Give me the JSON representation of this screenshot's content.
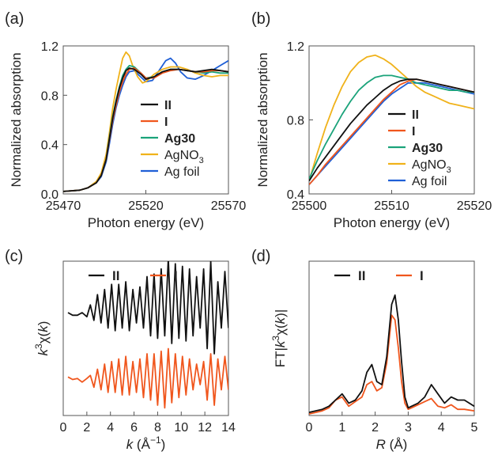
{
  "colors": {
    "II": "#111111",
    "I": "#f0561d",
    "Ag30": "#1aa37a",
    "AgNO3": "#f0b21a",
    "Agfoil": "#1f5fd6",
    "frame": "#555555"
  },
  "chart_data": [
    {
      "id": "a",
      "panel_label": "(a)",
      "type": "line",
      "xlabel": "Photon energy (eV)",
      "ylabel": "Normalized absorption",
      "xlim": [
        25470,
        25570
      ],
      "ylim": [
        0,
        1.2
      ],
      "xticks": [
        25470,
        25520,
        25570
      ],
      "xtick_labels": [
        "25470",
        "25520",
        "25570"
      ],
      "yticks": [
        0,
        0.4,
        0.8,
        1.2
      ],
      "ytick_labels": [
        "0.0",
        "0.4",
        "0.8",
        "1.2"
      ],
      "legend": "center-right",
      "series": [
        {
          "key": "II",
          "name": "II",
          "bold": true,
          "x": [
            25470,
            25480,
            25485,
            25490,
            25493,
            25496,
            25498,
            25500,
            25502,
            25504,
            25506,
            25508,
            25510,
            25513,
            25517,
            25520,
            25525,
            25530,
            25535,
            25540,
            25545,
            25550,
            25555,
            25560,
            25565,
            25570
          ],
          "y": [
            0.02,
            0.03,
            0.05,
            0.09,
            0.15,
            0.28,
            0.45,
            0.62,
            0.75,
            0.86,
            0.94,
            1.0,
            1.02,
            1.01,
            0.97,
            0.93,
            0.95,
            0.99,
            1.01,
            1.01,
            1.0,
            0.99,
            1.0,
            1.01,
            1.0,
            0.99
          ]
        },
        {
          "key": "I",
          "name": "I",
          "bold": true,
          "x": [
            25470,
            25480,
            25485,
            25490,
            25493,
            25496,
            25498,
            25500,
            25502,
            25504,
            25506,
            25508,
            25510,
            25513,
            25517,
            25520,
            25525,
            25530,
            25535,
            25540,
            25545,
            25550,
            25555,
            25560,
            25565,
            25570
          ],
          "y": [
            0.02,
            0.03,
            0.05,
            0.09,
            0.15,
            0.28,
            0.44,
            0.6,
            0.72,
            0.83,
            0.91,
            0.97,
            1.01,
            1.02,
            0.98,
            0.94,
            0.94,
            0.98,
            1.0,
            1.01,
            1.0,
            0.99,
            0.99,
            1.0,
            1.0,
            0.99
          ]
        },
        {
          "key": "Ag30",
          "name": "Ag30",
          "bold": true,
          "x": [
            25470,
            25480,
            25485,
            25490,
            25493,
            25496,
            25498,
            25500,
            25502,
            25504,
            25506,
            25508,
            25510,
            25513,
            25517,
            25520,
            25525,
            25530,
            25535,
            25540,
            25545,
            25550,
            25555,
            25560,
            25565,
            25570
          ],
          "y": [
            0.02,
            0.03,
            0.05,
            0.09,
            0.15,
            0.28,
            0.46,
            0.63,
            0.76,
            0.87,
            0.96,
            1.01,
            1.04,
            1.03,
            0.98,
            0.94,
            0.95,
            0.99,
            1.01,
            1.01,
            1.0,
            0.99,
            0.98,
            0.99,
            0.98,
            0.98
          ]
        },
        {
          "key": "AgNO3",
          "name": "AgNO3",
          "bold": false,
          "x": [
            25470,
            25480,
            25485,
            25490,
            25493,
            25496,
            25498,
            25500,
            25502,
            25504,
            25506,
            25508,
            25510,
            25512,
            25515,
            25518,
            25520,
            25525,
            25530,
            25535,
            25540,
            25545,
            25550,
            25555,
            25560,
            25565,
            25570
          ],
          "y": [
            0.02,
            0.03,
            0.05,
            0.1,
            0.17,
            0.32,
            0.5,
            0.7,
            0.85,
            0.98,
            1.1,
            1.15,
            1.12,
            1.04,
            0.95,
            0.9,
            0.91,
            0.97,
            1.01,
            1.03,
            1.03,
            1.01,
            0.98,
            0.96,
            0.95,
            0.96,
            0.96
          ]
        },
        {
          "key": "Agfoil",
          "name": "Ag foil",
          "bold": false,
          "x": [
            25470,
            25480,
            25485,
            25490,
            25493,
            25496,
            25498,
            25500,
            25502,
            25504,
            25506,
            25508,
            25510,
            25513,
            25516,
            25520,
            25524,
            25528,
            25532,
            25535,
            25538,
            25541,
            25545,
            25550,
            25555,
            25560,
            25565,
            25570
          ],
          "y": [
            0.02,
            0.03,
            0.05,
            0.09,
            0.14,
            0.26,
            0.41,
            0.57,
            0.7,
            0.8,
            0.88,
            0.95,
            0.99,
            1.0,
            0.96,
            0.91,
            0.92,
            1.0,
            1.08,
            1.1,
            1.06,
            0.99,
            0.94,
            0.93,
            0.96,
            1.0,
            1.04,
            1.08
          ]
        }
      ]
    },
    {
      "id": "b",
      "panel_label": "(b)",
      "type": "line",
      "xlabel": "Photon energy (eV)",
      "ylabel": "Normalized absorption",
      "xlim": [
        25500,
        25520
      ],
      "ylim": [
        0.4,
        1.2
      ],
      "xticks": [
        25500,
        25510,
        25520
      ],
      "xtick_labels": [
        "25500",
        "25510",
        "25520"
      ],
      "yticks": [
        0.4,
        0.8,
        1.2
      ],
      "ytick_labels": [
        "0.4",
        "0.8",
        "1.2"
      ],
      "legend": "bottom-right",
      "series": [
        {
          "key": "II",
          "name": "II",
          "bold": true,
          "x": [
            25500,
            25501,
            25502,
            25503,
            25504,
            25505,
            25506,
            25507,
            25508,
            25509,
            25510,
            25511,
            25512,
            25513,
            25514,
            25515,
            25516,
            25517,
            25518,
            25519,
            25520
          ],
          "y": [
            0.47,
            0.54,
            0.6,
            0.66,
            0.72,
            0.78,
            0.83,
            0.88,
            0.92,
            0.96,
            0.99,
            1.01,
            1.02,
            1.02,
            1.01,
            1.0,
            0.99,
            0.98,
            0.97,
            0.96,
            0.95
          ]
        },
        {
          "key": "I",
          "name": "I",
          "bold": true,
          "x": [
            25500,
            25501,
            25502,
            25503,
            25504,
            25505,
            25506,
            25507,
            25508,
            25509,
            25510,
            25511,
            25512,
            25513,
            25514,
            25515,
            25516,
            25517,
            25518,
            25519,
            25520
          ],
          "y": [
            0.45,
            0.5,
            0.56,
            0.61,
            0.66,
            0.71,
            0.76,
            0.81,
            0.86,
            0.91,
            0.95,
            0.99,
            1.01,
            1.02,
            1.01,
            1.0,
            0.99,
            0.98,
            0.97,
            0.96,
            0.95
          ]
        },
        {
          "key": "Ag30",
          "name": "Ag30",
          "bold": true,
          "x": [
            25500,
            25501,
            25502,
            25503,
            25504,
            25505,
            25506,
            25507,
            25508,
            25509,
            25510,
            25511,
            25512,
            25513,
            25514,
            25515,
            25516,
            25517,
            25518,
            25519,
            25520
          ],
          "y": [
            0.48,
            0.58,
            0.67,
            0.75,
            0.83,
            0.9,
            0.96,
            1.0,
            1.03,
            1.04,
            1.04,
            1.03,
            1.02,
            1.0,
            0.99,
            0.98,
            0.97,
            0.96,
            0.96,
            0.95,
            0.95
          ]
        },
        {
          "key": "AgNO3",
          "name": "AgNO3",
          "bold": false,
          "x": [
            25500,
            25501,
            25502,
            25503,
            25504,
            25505,
            25506,
            25507,
            25508,
            25509,
            25510,
            25511,
            25512,
            25513,
            25514,
            25515,
            25516,
            25517,
            25518,
            25519,
            25520
          ],
          "y": [
            0.47,
            0.62,
            0.76,
            0.88,
            0.98,
            1.06,
            1.11,
            1.14,
            1.15,
            1.13,
            1.1,
            1.06,
            1.02,
            0.98,
            0.95,
            0.93,
            0.91,
            0.89,
            0.88,
            0.87,
            0.86
          ]
        },
        {
          "key": "Agfoil",
          "name": "Ag foil",
          "bold": false,
          "x": [
            25500,
            25501,
            25502,
            25503,
            25504,
            25505,
            25506,
            25507,
            25508,
            25509,
            25510,
            25511,
            25512,
            25513,
            25514,
            25515,
            25516,
            25517,
            25518,
            25519,
            25520
          ],
          "y": [
            0.45,
            0.5,
            0.55,
            0.6,
            0.65,
            0.7,
            0.75,
            0.8,
            0.85,
            0.9,
            0.94,
            0.97,
            1.0,
            1.0,
            1.0,
            0.99,
            0.98,
            0.97,
            0.96,
            0.95,
            0.94
          ]
        }
      ]
    },
    {
      "id": "c",
      "panel_label": "(c)",
      "type": "line",
      "xlabel": "k (Å⁻¹)",
      "ylabel": "k³χ(k)",
      "xlim": [
        0,
        14
      ],
      "ylim": [
        -1.5,
        1.5
      ],
      "xticks": [
        0,
        2,
        4,
        6,
        8,
        10,
        12,
        14
      ],
      "xtick_labels": [
        "0",
        "2",
        "4",
        "6",
        "8",
        "10",
        "12",
        "14"
      ],
      "yticks": [],
      "ytick_labels": [],
      "legend": "top",
      "series": [
        {
          "key": "II",
          "name": "II",
          "bold": true,
          "x": [
            0.4,
            0.8,
            1.2,
            1.6,
            2.0,
            2.3,
            2.6,
            2.9,
            3.2,
            3.5,
            3.8,
            4.1,
            4.4,
            4.7,
            5.0,
            5.3,
            5.6,
            5.9,
            6.2,
            6.5,
            6.8,
            7.1,
            7.4,
            7.7,
            8.0,
            8.3,
            8.6,
            8.9,
            9.2,
            9.5,
            9.8,
            10.1,
            10.4,
            10.7,
            11.0,
            11.3,
            11.6,
            11.9,
            12.2,
            12.5,
            12.8,
            13.1,
            13.4,
            13.7,
            14.0
          ],
          "y": [
            0.5,
            0.45,
            0.45,
            0.5,
            0.42,
            0.65,
            0.35,
            0.85,
            0.3,
            0.95,
            0.2,
            1.05,
            0.15,
            1.05,
            0.2,
            1.1,
            0.15,
            0.95,
            0.3,
            1.0,
            0.2,
            1.2,
            0.05,
            1.25,
            0.0,
            1.35,
            0.05,
            1.55,
            -0.1,
            1.45,
            0.0,
            1.4,
            -0.05,
            1.35,
            0.05,
            1.2,
            0.2,
            1.35,
            -0.2,
            1.5,
            -0.3,
            1.1,
            0.2,
            1.3,
            0.2
          ]
        },
        {
          "key": "I",
          "name": "I",
          "bold": true,
          "x": [
            0.4,
            0.8,
            1.2,
            1.6,
            2.0,
            2.3,
            2.6,
            2.9,
            3.2,
            3.5,
            3.8,
            4.1,
            4.4,
            4.7,
            5.0,
            5.3,
            5.6,
            5.9,
            6.2,
            6.5,
            6.8,
            7.1,
            7.4,
            7.7,
            8.0,
            8.3,
            8.6,
            8.9,
            9.2,
            9.5,
            9.8,
            10.1,
            10.4,
            10.7,
            11.0,
            11.3,
            11.6,
            11.9,
            12.2,
            12.5,
            12.8,
            13.1,
            13.4,
            13.7,
            14.0
          ],
          "y": [
            -0.75,
            -0.8,
            -0.78,
            -0.85,
            -0.78,
            -0.72,
            -0.95,
            -0.6,
            -1.0,
            -0.5,
            -1.05,
            -0.45,
            -1.05,
            -0.4,
            -1.1,
            -0.35,
            -1.1,
            -0.45,
            -1.05,
            -0.4,
            -1.15,
            -0.3,
            -1.2,
            -0.3,
            -1.3,
            -0.25,
            -1.35,
            -0.2,
            -1.25,
            -0.3,
            -1.15,
            -0.35,
            -1.1,
            -0.4,
            -1.0,
            -0.5,
            -0.9,
            -0.45,
            -1.2,
            -0.3,
            -1.3,
            -0.4,
            -1.0,
            -0.35,
            -1.0
          ]
        }
      ]
    },
    {
      "id": "d",
      "panel_label": "(d)",
      "type": "line",
      "xlabel": "R (Å)",
      "ylabel": "FT|k³χ(k)|",
      "xlim": [
        0,
        5
      ],
      "ylim": [
        0,
        1.0
      ],
      "xticks": [
        0,
        1,
        2,
        3,
        4,
        5
      ],
      "xtick_labels": [
        "0",
        "1",
        "2",
        "3",
        "4",
        "5"
      ],
      "yticks": [],
      "ytick_labels": [],
      "legend": "top",
      "series": [
        {
          "key": "II",
          "name": "II",
          "bold": true,
          "x": [
            0.0,
            0.2,
            0.4,
            0.6,
            0.8,
            1.0,
            1.2,
            1.4,
            1.6,
            1.75,
            1.9,
            2.05,
            2.2,
            2.35,
            2.5,
            2.6,
            2.7,
            2.8,
            2.9,
            3.0,
            3.1,
            3.3,
            3.5,
            3.7,
            3.9,
            4.1,
            4.3,
            4.5,
            4.7,
            5.0
          ],
          "y": [
            0.02,
            0.03,
            0.04,
            0.06,
            0.1,
            0.14,
            0.08,
            0.1,
            0.16,
            0.28,
            0.33,
            0.22,
            0.2,
            0.38,
            0.72,
            0.78,
            0.62,
            0.35,
            0.12,
            0.05,
            0.06,
            0.08,
            0.12,
            0.2,
            0.14,
            0.08,
            0.12,
            0.1,
            0.1,
            0.06
          ]
        },
        {
          "key": "I",
          "name": "I",
          "bold": true,
          "x": [
            0.0,
            0.2,
            0.4,
            0.6,
            0.8,
            1.0,
            1.2,
            1.4,
            1.6,
            1.75,
            1.9,
            2.05,
            2.2,
            2.35,
            2.5,
            2.6,
            2.7,
            2.8,
            2.9,
            3.0,
            3.1,
            3.3,
            3.5,
            3.7,
            3.9,
            4.1,
            4.3,
            4.5,
            4.7,
            5.0
          ],
          "y": [
            0.01,
            0.02,
            0.03,
            0.05,
            0.1,
            0.12,
            0.06,
            0.09,
            0.12,
            0.2,
            0.22,
            0.16,
            0.18,
            0.34,
            0.65,
            0.62,
            0.44,
            0.22,
            0.08,
            0.04,
            0.05,
            0.07,
            0.09,
            0.11,
            0.06,
            0.05,
            0.07,
            0.04,
            0.04,
            0.03
          ]
        }
      ]
    }
  ]
}
